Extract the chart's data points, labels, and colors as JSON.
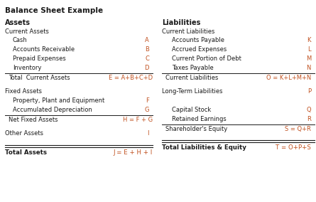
{
  "title": "Balance Sheet Example",
  "background_color": "#ffffff",
  "black": "#1a1a1a",
  "orange": "#c0501f",
  "left": {
    "header": "Assets",
    "sub1": "Current Assets",
    "items1": [
      [
        "Cash",
        "A"
      ],
      [
        "Accounts Receivable",
        "B"
      ],
      [
        "Prepaid Expenses",
        "C"
      ],
      [
        "Inventory",
        "D"
      ]
    ],
    "total1_label": "Total  Current Assets",
    "total1_formula": "E = A+B+C+D",
    "sub2": "Fixed Assets",
    "items2": [
      [
        "Property, Plant and Equipment",
        "F"
      ],
      [
        "Accumulated Depreciation",
        "G"
      ]
    ],
    "total2_label": "Net Fixed Assets",
    "total2_formula": "H = F + G",
    "item3_label": "Other Assets",
    "item3_code": "I",
    "total_label": "Total Assets",
    "total_formula": "J = E + H + I"
  },
  "right": {
    "header": "Liabilities",
    "sub1": "Current Liabilities",
    "items1": [
      [
        "Accounts Payable",
        "K"
      ],
      [
        "Accrued Expenses",
        "L"
      ],
      [
        "Current Portion of Debt",
        "M"
      ],
      [
        "Taxes Payable",
        "N"
      ]
    ],
    "total1_label": "Current Liabilities",
    "total1_formula": "O = K+L+M+N",
    "item2_label": "Long-Term Liabilities",
    "item2_code": "P",
    "items3": [
      [
        "Capital Stock",
        "Q"
      ],
      [
        "Retained Earnings",
        "R"
      ]
    ],
    "total3_label": "Shareholder's Equity",
    "total3_formula": "S = Q+R",
    "total_label": "Total Liabilities & Equity",
    "total_formula": "T = O+P+S"
  },
  "figsize": [
    4.45,
    2.84
  ],
  "dpi": 100
}
